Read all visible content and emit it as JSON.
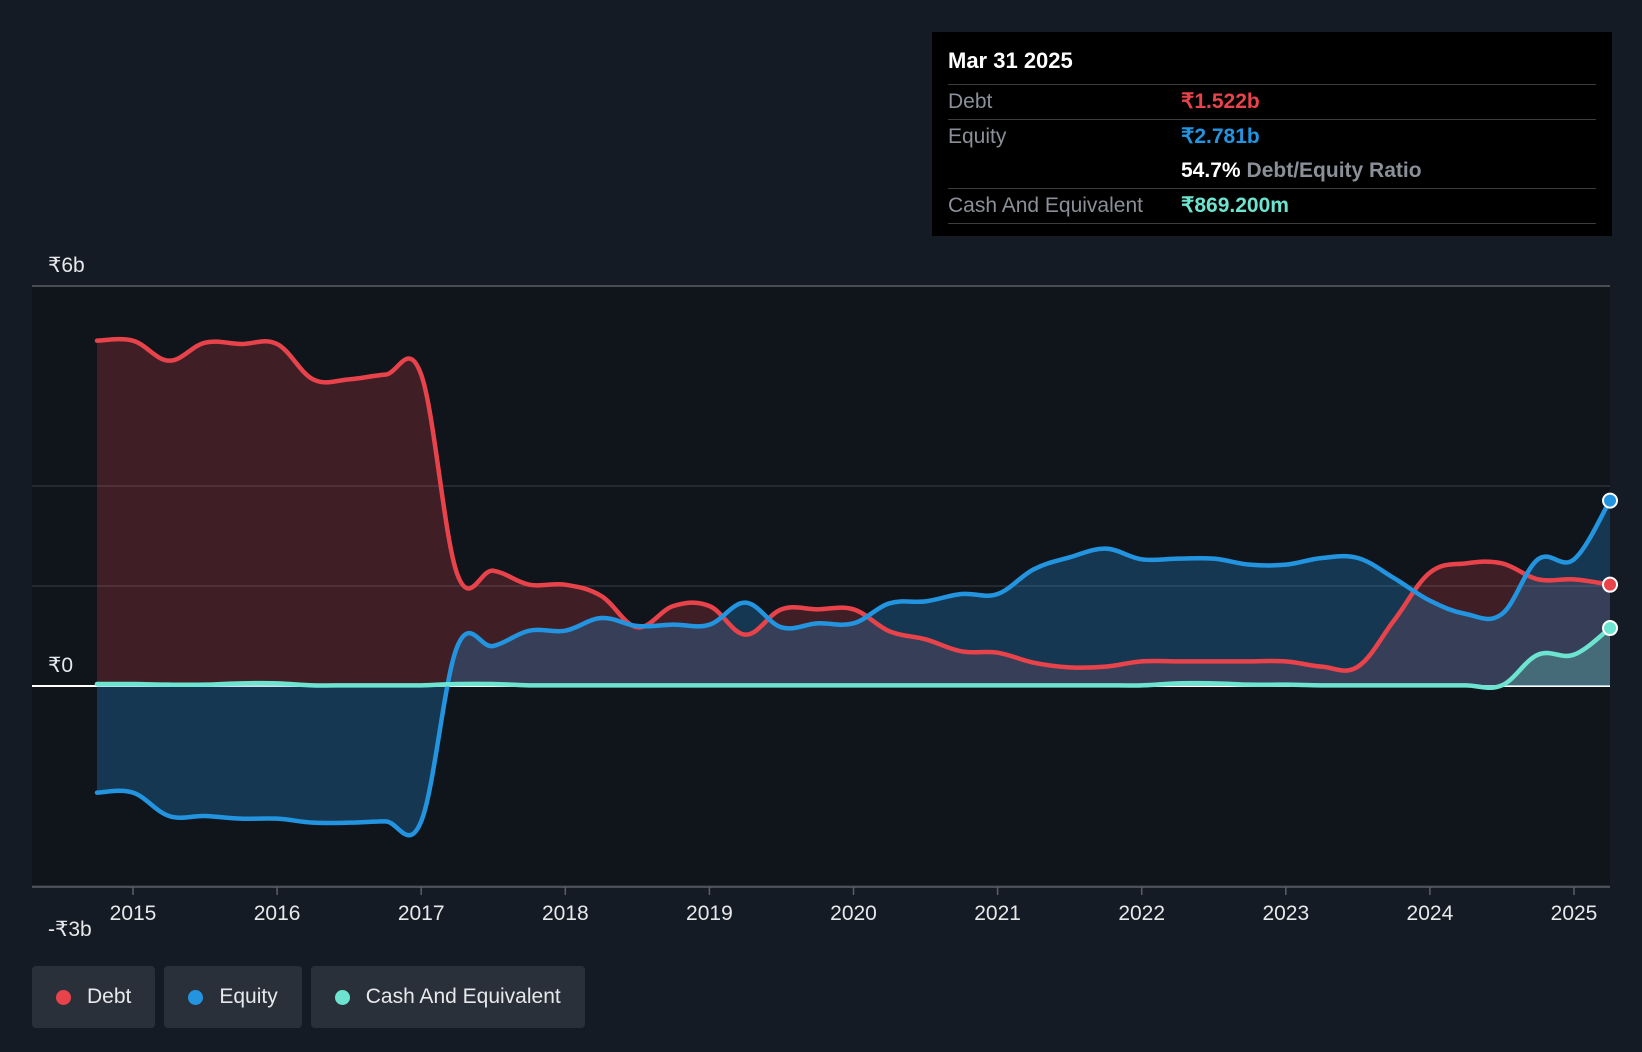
{
  "colors": {
    "background": "#151b24",
    "plot_background": "#10141b",
    "debt": "#e8434a",
    "equity": "#2394df",
    "cash": "#6ce4d0",
    "ratio_label": "#8a8f98"
  },
  "tooltip": {
    "date": "Mar 31 2025",
    "debt_label": "Debt",
    "debt_value": "₹1.522b",
    "equity_label": "Equity",
    "equity_value": "₹2.781b",
    "ratio_value": "54.7%",
    "ratio_label": "Debt/Equity Ratio",
    "cash_label": "Cash And Equivalent",
    "cash_value": "₹869.200m"
  },
  "legend": [
    {
      "label": "Debt",
      "color": "#e8434a"
    },
    {
      "label": "Equity",
      "color": "#2394df"
    },
    {
      "label": "Cash And Equivalent",
      "color": "#6ce4d0"
    }
  ],
  "chart_data": {
    "type": "area",
    "title": "",
    "xlabel": "",
    "ylabel": "",
    "ylim": [
      -3,
      6
    ],
    "xlim": [
      2014.3,
      2025.25
    ],
    "y_ticks": [
      {
        "value": 6,
        "label": "₹6b"
      },
      {
        "value": 0,
        "label": "₹0"
      },
      {
        "value": -3,
        "label": "-₹3b"
      }
    ],
    "y_gridlines": [
      6,
      3,
      1.5,
      0,
      -3
    ],
    "x_ticks": [
      {
        "value": 2015,
        "label": "2015"
      },
      {
        "value": 2016,
        "label": "2016"
      },
      {
        "value": 2017,
        "label": "2017"
      },
      {
        "value": 2018,
        "label": "2018"
      },
      {
        "value": 2019,
        "label": "2019"
      },
      {
        "value": 2020,
        "label": "2020"
      },
      {
        "value": 2021,
        "label": "2021"
      },
      {
        "value": 2022,
        "label": "2022"
      },
      {
        "value": 2023,
        "label": "2023"
      },
      {
        "value": 2024,
        "label": "2024"
      },
      {
        "value": 2025,
        "label": "2025"
      }
    ],
    "units": "₹ billions",
    "series": [
      {
        "name": "Debt",
        "color": "#e8434a",
        "points": [
          [
            2014.75,
            5.18
          ],
          [
            2015.0,
            5.18
          ],
          [
            2015.25,
            4.88
          ],
          [
            2015.5,
            5.15
          ],
          [
            2015.75,
            5.13
          ],
          [
            2016.0,
            5.13
          ],
          [
            2016.25,
            4.6
          ],
          [
            2016.5,
            4.6
          ],
          [
            2016.75,
            4.67
          ],
          [
            2017.0,
            4.67
          ],
          [
            2017.25,
            1.68
          ],
          [
            2017.5,
            1.73
          ],
          [
            2017.75,
            1.52
          ],
          [
            2018.0,
            1.52
          ],
          [
            2018.25,
            1.35
          ],
          [
            2018.5,
            0.88
          ],
          [
            2018.75,
            1.2
          ],
          [
            2019.0,
            1.2
          ],
          [
            2019.25,
            0.77
          ],
          [
            2019.5,
            1.15
          ],
          [
            2019.75,
            1.15
          ],
          [
            2020.0,
            1.15
          ],
          [
            2020.25,
            0.82
          ],
          [
            2020.5,
            0.7
          ],
          [
            2020.75,
            0.52
          ],
          [
            2021.0,
            0.5
          ],
          [
            2021.25,
            0.35
          ],
          [
            2021.5,
            0.28
          ],
          [
            2021.75,
            0.29
          ],
          [
            2022.0,
            0.37
          ],
          [
            2022.25,
            0.37
          ],
          [
            2022.5,
            0.37
          ],
          [
            2022.75,
            0.37
          ],
          [
            2023.0,
            0.37
          ],
          [
            2023.25,
            0.29
          ],
          [
            2023.5,
            0.29
          ],
          [
            2023.75,
            0.98
          ],
          [
            2024.0,
            1.7
          ],
          [
            2024.25,
            1.84
          ],
          [
            2024.5,
            1.84
          ],
          [
            2024.75,
            1.6
          ],
          [
            2025.0,
            1.6
          ],
          [
            2025.25,
            1.52
          ]
        ]
      },
      {
        "name": "Equity",
        "color": "#2394df",
        "points": [
          [
            2014.75,
            -1.6
          ],
          [
            2015.0,
            -1.6
          ],
          [
            2015.25,
            -1.95
          ],
          [
            2015.5,
            -1.95
          ],
          [
            2015.75,
            -1.99
          ],
          [
            2016.0,
            -1.99
          ],
          [
            2016.25,
            -2.05
          ],
          [
            2016.5,
            -2.05
          ],
          [
            2016.75,
            -2.03
          ],
          [
            2017.0,
            -2.03
          ],
          [
            2017.25,
            0.59
          ],
          [
            2017.5,
            0.6
          ],
          [
            2017.75,
            0.83
          ],
          [
            2018.0,
            0.83
          ],
          [
            2018.25,
            1.02
          ],
          [
            2018.5,
            0.9
          ],
          [
            2018.75,
            0.92
          ],
          [
            2019.0,
            0.92
          ],
          [
            2019.25,
            1.25
          ],
          [
            2019.5,
            0.88
          ],
          [
            2019.75,
            0.94
          ],
          [
            2020.0,
            0.94
          ],
          [
            2020.25,
            1.24
          ],
          [
            2020.5,
            1.27
          ],
          [
            2020.75,
            1.38
          ],
          [
            2021.0,
            1.38
          ],
          [
            2021.25,
            1.75
          ],
          [
            2021.5,
            1.93
          ],
          [
            2021.75,
            2.06
          ],
          [
            2022.0,
            1.9
          ],
          [
            2022.25,
            1.91
          ],
          [
            2022.5,
            1.91
          ],
          [
            2022.75,
            1.82
          ],
          [
            2023.0,
            1.82
          ],
          [
            2023.25,
            1.92
          ],
          [
            2023.5,
            1.92
          ],
          [
            2023.75,
            1.62
          ],
          [
            2024.0,
            1.28
          ],
          [
            2024.25,
            1.08
          ],
          [
            2024.5,
            1.08
          ],
          [
            2024.75,
            1.9
          ],
          [
            2025.0,
            1.9
          ],
          [
            2025.25,
            2.781
          ]
        ]
      },
      {
        "name": "Cash And Equivalent",
        "color": "#6ce4d0",
        "points": [
          [
            2014.75,
            0.03
          ],
          [
            2015.0,
            0.03
          ],
          [
            2015.25,
            0.02
          ],
          [
            2015.5,
            0.02
          ],
          [
            2015.75,
            0.04
          ],
          [
            2016.0,
            0.04
          ],
          [
            2016.25,
            0.01
          ],
          [
            2016.5,
            0.01
          ],
          [
            2016.75,
            0.01
          ],
          [
            2017.0,
            0.01
          ],
          [
            2017.25,
            0.03
          ],
          [
            2017.5,
            0.03
          ],
          [
            2017.75,
            0.01
          ],
          [
            2018.0,
            0.01
          ],
          [
            2018.25,
            0.01
          ],
          [
            2018.5,
            0.01
          ],
          [
            2018.75,
            0.01
          ],
          [
            2019.0,
            0.01
          ],
          [
            2019.25,
            0.01
          ],
          [
            2019.5,
            0.01
          ],
          [
            2019.75,
            0.01
          ],
          [
            2020.0,
            0.01
          ],
          [
            2020.25,
            0.01
          ],
          [
            2020.5,
            0.01
          ],
          [
            2020.75,
            0.01
          ],
          [
            2021.0,
            0.01
          ],
          [
            2021.25,
            0.01
          ],
          [
            2021.5,
            0.01
          ],
          [
            2021.75,
            0.01
          ],
          [
            2022.0,
            0.01
          ],
          [
            2022.25,
            0.04
          ],
          [
            2022.5,
            0.04
          ],
          [
            2022.75,
            0.02
          ],
          [
            2023.0,
            0.02
          ],
          [
            2023.25,
            0.01
          ],
          [
            2023.5,
            0.01
          ],
          [
            2023.75,
            0.01
          ],
          [
            2024.0,
            0.01
          ],
          [
            2024.25,
            0.01
          ],
          [
            2024.5,
            0.01
          ],
          [
            2024.75,
            0.47
          ],
          [
            2025.0,
            0.47
          ],
          [
            2025.25,
            0.8692
          ]
        ]
      }
    ]
  }
}
